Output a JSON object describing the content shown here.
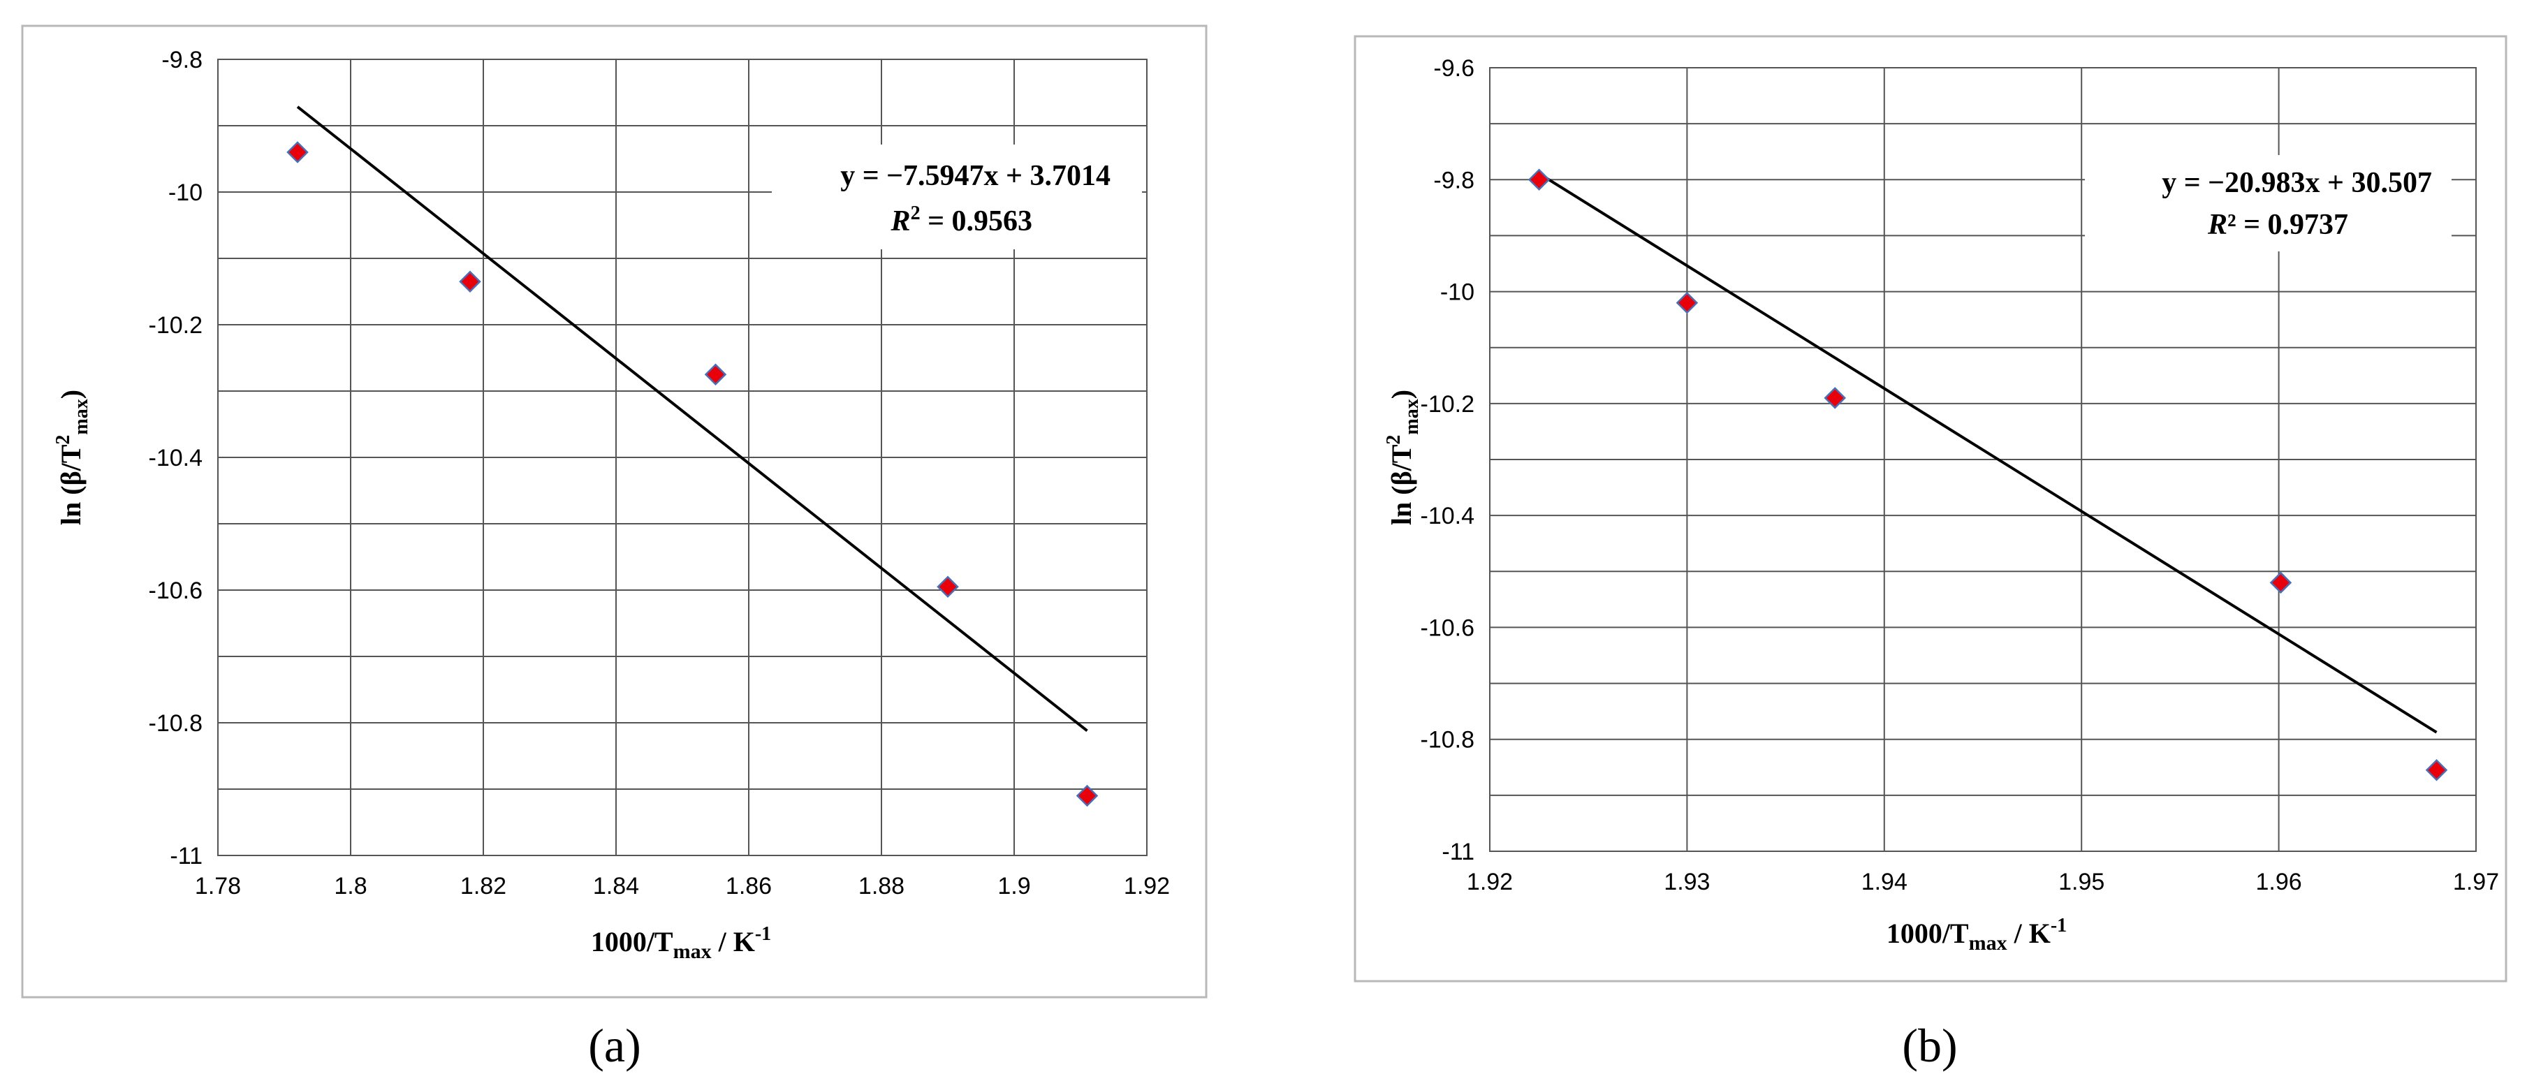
{
  "chart_data": [
    {
      "panel_label": "(a)",
      "type": "scatter",
      "xlabel": {
        "main": "1000/T",
        "sub": "max",
        "unit": " / K",
        "sup": "-1"
      },
      "ylabel": {
        "main": "ln (β/T",
        "sup": "2",
        "sub": "max",
        "close": ")"
      },
      "xlim": [
        1.78,
        1.92
      ],
      "ylim": [
        -11,
        -9.8
      ],
      "x_ticks": [
        1.78,
        1.8,
        1.82,
        1.84,
        1.86,
        1.88,
        1.9,
        1.92
      ],
      "x_tick_labels": [
        "1.78",
        "1.8",
        "1.82",
        "1.84",
        "1.86",
        "1.88",
        "1.9",
        "1.92"
      ],
      "y_ticks": [
        -11,
        -10.8,
        -10.6,
        -10.4,
        -10.2,
        -10,
        -9.8
      ],
      "y_tick_labels": [
        "-11",
        "-10.8",
        "-10.6",
        "-10.4",
        "-10.2",
        "-10",
        "-9.8"
      ],
      "minor_y_gridlines": [
        -10.9,
        -10.7,
        -10.5,
        -10.3,
        -10.1,
        -9.9
      ],
      "grid": true,
      "points": {
        "x": [
          1.792,
          1.818,
          1.855,
          1.89,
          1.911
        ],
        "y": [
          -9.94,
          -10.135,
          -10.275,
          -10.595,
          -10.91
        ]
      },
      "trendline": {
        "slope": -7.5947,
        "intercept": 3.7014,
        "x_range": [
          1.792,
          1.911
        ]
      },
      "equation_text": {
        "line1": "y = −7.5947x + 3.7014",
        "r2_prefix": "R",
        "r2_sup": "2",
        "r2_value": " = 0.9563"
      },
      "marker_color": "#e8000b",
      "marker_edge_color": "#4a6fb5",
      "line_color": "#000000"
    },
    {
      "panel_label": "(b)",
      "type": "scatter",
      "xlabel": {
        "main": "1000/T",
        "sub": "max",
        "unit": " / K",
        "sup": "-1"
      },
      "ylabel": {
        "main": "ln (β/T",
        "sup": "2",
        "sub": "max",
        "close": ")"
      },
      "xlim": [
        1.92,
        1.97
      ],
      "ylim": [
        -11,
        -9.6
      ],
      "x_ticks": [
        1.92,
        1.93,
        1.94,
        1.95,
        1.96,
        1.97
      ],
      "x_tick_labels": [
        "1.92",
        "1.93",
        "1.94",
        "1.95",
        "1.96",
        "1.97"
      ],
      "y_ticks": [
        -11,
        -10.8,
        -10.6,
        -10.4,
        -10.2,
        -10,
        -9.8,
        -9.6
      ],
      "y_tick_labels": [
        "-11",
        "-10.8",
        "-10.6",
        "-10.4",
        "-10.2",
        "-10",
        "-9.8",
        "-9.6"
      ],
      "minor_y_gridlines": [
        -10.9,
        -10.7,
        -10.5,
        -10.3,
        -10.1,
        -9.9,
        -9.7
      ],
      "grid": true,
      "points": {
        "x": [
          1.9225,
          1.93,
          1.9375,
          1.9601,
          1.968
        ],
        "y": [
          -9.8,
          -10.02,
          -10.19,
          -10.52,
          -10.855
        ]
      },
      "trendline": {
        "slope": -20.983,
        "intercept": 30.507,
        "x_range": [
          1.9225,
          1.968
        ]
      },
      "equation_text": {
        "line1": "y = −20.983x + 30.507",
        "r2_prefix": "R",
        "r2_sup": "²",
        "r2_value": " = 0.9737"
      },
      "marker_color": "#e8000b",
      "marker_edge_color": "#4a6fb5",
      "line_color": "#000000"
    }
  ]
}
